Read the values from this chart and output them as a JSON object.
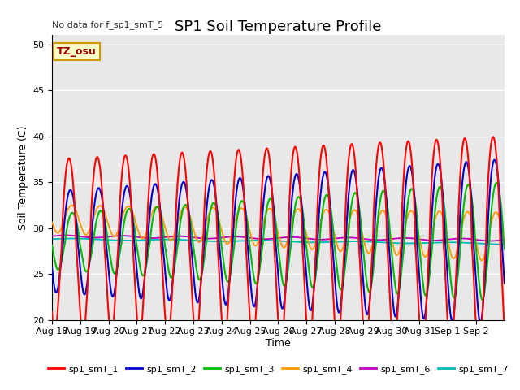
{
  "title": "SP1 Soil Temperature Profile",
  "xlabel": "Time",
  "ylabel": "Soil Temperature (C)",
  "note": "No data for f_sp1_smT_5",
  "tz_label": "TZ_osu",
  "ylim": [
    20,
    51
  ],
  "yticks": [
    20,
    25,
    30,
    35,
    40,
    45,
    50
  ],
  "x_tick_labels": [
    "Aug 18",
    "Aug 19",
    "Aug 20",
    "Aug 21",
    "Aug 22",
    "Aug 23",
    "Aug 24",
    "Aug 25",
    "Aug 26",
    "Aug 27",
    "Aug 28",
    "Aug 29",
    "Aug 30",
    "Aug 31",
    "Sep 1",
    "Sep 2"
  ],
  "legend_entries": [
    {
      "label": "sp1_smT_1",
      "color": "#FF0000"
    },
    {
      "label": "sp1_smT_2",
      "color": "#0000CC"
    },
    {
      "label": "sp1_smT_3",
      "color": "#00BB00"
    },
    {
      "label": "sp1_smT_4",
      "color": "#FF9900"
    },
    {
      "label": "sp1_smT_6",
      "color": "#BB00BB"
    },
    {
      "label": "sp1_smT_7",
      "color": "#00BBBB"
    }
  ],
  "bg_color": "#E8E8E8",
  "grid_color": "#FFFFFF",
  "title_fontsize": 13,
  "label_fontsize": 9,
  "tick_fontsize": 8
}
